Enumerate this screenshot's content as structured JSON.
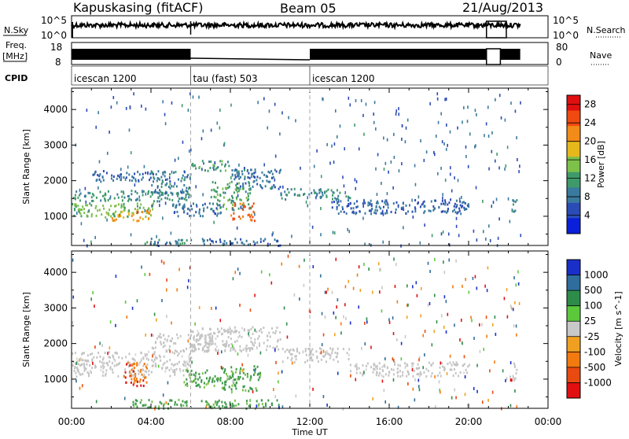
{
  "header": {
    "station": "Kapuskasing (fitACF)",
    "beam": "Beam 05",
    "date": "21/Aug/2013"
  },
  "left_labels": {
    "nsky": "N.Sky",
    "freq_line1": "Freq.",
    "freq_line2": "[MHz]",
    "cpid": "CPID"
  },
  "right_labels": {
    "nsearch": "N.Search",
    "nave": "Nave"
  },
  "chart_data": [
    {
      "type": "line",
      "panel": "noise",
      "y_left_ticks": [
        "10^5",
        "10^0"
      ],
      "y_right_ticks": [
        "10^5",
        "10^0"
      ],
      "series": [
        {
          "name": "N.Sky",
          "note": "dense noise trace, roughly constant near 10^5 with dropouts"
        },
        {
          "name": "N.Search"
        }
      ]
    },
    {
      "type": "line",
      "panel": "frequency",
      "y_left_ticks": [
        "18",
        "8"
      ],
      "y_right_ticks": [
        "80",
        "0"
      ],
      "series": [
        {
          "name": "Freq.",
          "note": "high (~18 MHz) except 06:00–12:00 low"
        },
        {
          "name": "Nave"
        }
      ]
    },
    {
      "type": "table",
      "panel": "cpid",
      "segments": [
        {
          "label": "icescan 1200",
          "start_h": 0,
          "end_h": 6
        },
        {
          "label": "tau (fast) 503",
          "start_h": 6,
          "end_h": 12
        },
        {
          "label": "icescan 1200",
          "start_h": 12,
          "end_h": 24
        }
      ]
    },
    {
      "type": "heatmap",
      "panel": "power",
      "ylabel": "Slant Range [km]",
      "yticks": [
        1000,
        2000,
        3000,
        4000
      ],
      "ylim": [
        180,
        4600
      ],
      "colorbar_label": "Power [dB]",
      "colorbar_ticks": [
        4,
        8,
        12,
        16,
        20,
        24,
        28
      ],
      "colorbar_range": [
        0,
        30
      ],
      "echo_regions": [
        {
          "t0": 0.0,
          "t1": 6.0,
          "r0": 1450,
          "r1": 1750,
          "level": 10
        },
        {
          "t0": 0.0,
          "t1": 4.2,
          "r0": 1000,
          "r1": 1400,
          "level": 14
        },
        {
          "t0": 2.0,
          "t1": 4.0,
          "r0": 900,
          "r1": 1200,
          "level": 22
        },
        {
          "t0": 1.0,
          "t1": 4.0,
          "r0": 2000,
          "r1": 2300,
          "level": 6
        },
        {
          "t0": 3.5,
          "t1": 6.0,
          "r0": 200,
          "r1": 400,
          "level": 8
        },
        {
          "t0": 4.0,
          "t1": 6.0,
          "r0": 1600,
          "r1": 2300,
          "level": 8
        },
        {
          "t0": 6.0,
          "t1": 8.0,
          "r0": 2300,
          "r1": 2600,
          "level": 11
        },
        {
          "t0": 8.0,
          "t1": 10.5,
          "r0": 1800,
          "r1": 2400,
          "level": 7
        },
        {
          "t0": 7.0,
          "t1": 9.0,
          "r0": 1200,
          "r1": 2000,
          "level": 12
        },
        {
          "t0": 8.0,
          "t1": 9.2,
          "r0": 900,
          "r1": 1400,
          "level": 25
        },
        {
          "t0": 5.0,
          "t1": 7.5,
          "r0": 1000,
          "r1": 1400,
          "level": 6
        },
        {
          "t0": 6.5,
          "t1": 10.5,
          "r0": 200,
          "r1": 400,
          "level": 6
        },
        {
          "t0": 10.5,
          "t1": 14.0,
          "r0": 1500,
          "r1": 1800,
          "level": 9
        },
        {
          "t0": 13.0,
          "t1": 20.0,
          "r0": 1100,
          "r1": 1500,
          "level": 6
        },
        {
          "t0": 22.0,
          "t1": 22.4,
          "r0": 1100,
          "r1": 1500,
          "level": 9
        }
      ]
    },
    {
      "type": "heatmap",
      "panel": "velocity",
      "ylabel": "Slant Range [km]",
      "yticks": [
        1000,
        2000,
        3000,
        4000
      ],
      "ylim": [
        180,
        4600
      ],
      "xlabel": "Time UT",
      "xticks": [
        "00:00",
        "04:00",
        "08:00",
        "12:00",
        "16:00",
        "20:00",
        "00:00"
      ],
      "xlim": [
        0,
        24
      ],
      "colorbar_label": "Velocity [m s^-1]",
      "colorbar_ticks": [
        "1000",
        "500",
        "100",
        "25",
        "-25",
        "-100",
        "-500",
        "-1000"
      ],
      "echo_regions": [
        {
          "t0": 0.0,
          "t1": 6.0,
          "r0": 1100,
          "r1": 1800,
          "level": "gray"
        },
        {
          "t0": 2.6,
          "t1": 3.8,
          "r0": 800,
          "r1": 1500,
          "level": "orange"
        },
        {
          "t0": 3.0,
          "t1": 6.0,
          "r0": 200,
          "r1": 450,
          "level": "green"
        },
        {
          "t0": 4.0,
          "t1": 7.0,
          "r0": 1800,
          "r1": 2300,
          "level": "gray"
        },
        {
          "t0": 5.5,
          "t1": 7.5,
          "r0": 800,
          "r1": 1300,
          "level": "green"
        },
        {
          "t0": 7.5,
          "t1": 9.5,
          "r0": 700,
          "r1": 1400,
          "level": "green"
        },
        {
          "t0": 6.0,
          "t1": 10.5,
          "r0": 1800,
          "r1": 2500,
          "level": "gray"
        },
        {
          "t0": 6.5,
          "t1": 10.5,
          "r0": 200,
          "r1": 450,
          "level": "green"
        },
        {
          "t0": 10.5,
          "t1": 14.0,
          "r0": 1500,
          "r1": 1900,
          "level": "gray"
        },
        {
          "t0": 14.0,
          "t1": 20.0,
          "r0": 1100,
          "r1": 1500,
          "level": "gray"
        },
        {
          "t0": 22.0,
          "t1": 22.4,
          "r0": 1000,
          "r1": 1500,
          "level": "gray"
        }
      ]
    }
  ],
  "colors": {
    "power_scale": [
      "#0a1fd9",
      "#2b4bb5",
      "#3a7a9e",
      "#3f9a6a",
      "#7dc04a",
      "#e6b81c",
      "#f28b18",
      "#f04a10",
      "#e01010"
    ],
    "velocity_scale": [
      "#1a2fc8",
      "#2e6d9c",
      "#2e8c4a",
      "#5cc83c",
      "#c8c8c8",
      "#f0a020",
      "#f27a10",
      "#e84a10",
      "#e01010"
    ],
    "gray_echo": "#c4c4c4",
    "green_echo": "#3d9a4a"
  }
}
